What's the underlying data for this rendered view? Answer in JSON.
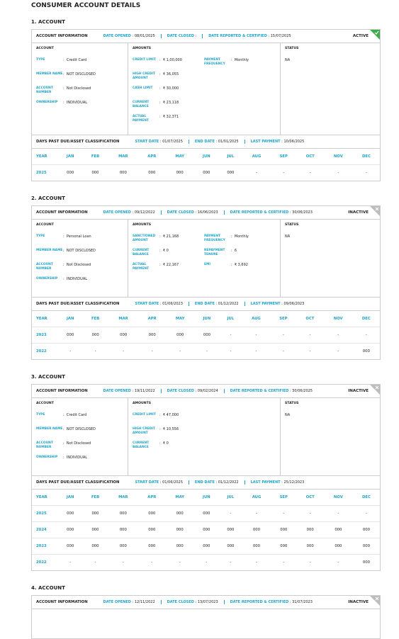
{
  "title": "CONSUMER ACCOUNT DETAILS",
  "labels": {
    "account_information": "ACCOUNT INFORMATION",
    "date_opened": "DATE OPENED",
    "date_closed": "DATE CLOSED",
    "date_reported": "DATE REPORTED & CERTIFIED",
    "account": "ACCOUNT",
    "amounts": "AMOUNTS",
    "status": "STATUS",
    "dpd": "DAYS PAST DUE/ASSET CLASSIFICATION",
    "start_date": "START DATE",
    "end_date": "END DATE",
    "last_payment": "LAST PAYMENT",
    "year": "YEAR",
    "months": [
      "JAN",
      "FEB",
      "MAR",
      "APR",
      "MAY",
      "JUN",
      "JUL",
      "AUG",
      "SEP",
      "OCT",
      "NOV",
      "DEC"
    ]
  },
  "accounts": [
    {
      "heading": "1. ACCOUNT",
      "date_opened": "08/01/2025",
      "date_reported": "15/07/2025",
      "badge": "ACTIVE",
      "account_fields": [
        {
          "label": "TYPE",
          "value": "Credit Card"
        },
        {
          "label": "MEMBER NAME",
          "value": "NOT DISCLOSED"
        },
        {
          "label": "ACCOUNT NUMBER",
          "value": "Not Disclosed"
        },
        {
          "label": "OWNERSHIP",
          "value": "INDIVIDUAL"
        }
      ],
      "amount_fields": [
        {
          "label": "CREDIT LIMIT",
          "value": "₹ 1,00,000"
        },
        {
          "label": "HIGH CREDIT AMOUNT",
          "value": "₹ 36,055"
        },
        {
          "label": "CASH LIMIT",
          "value": "₹ 30,000"
        },
        {
          "label": "CURRENT BALANCE",
          "value": "₹ 23,118"
        },
        {
          "label": "ACTUAL PAYMENT",
          "value": "₹ 32,371"
        }
      ],
      "amount_fields_right": [
        {
          "label": "PAYMENT FREQUENCY",
          "value": "Monthly"
        }
      ],
      "status": "NA",
      "dpd": {
        "start_date": "01/07/2025",
        "end_date": "01/01/2025",
        "last_payment": "10/06/2025",
        "rows": [
          {
            "year": "2025",
            "values": [
              "000",
              "000",
              "000",
              "000",
              "000",
              "000",
              "000",
              "-",
              "-",
              "-",
              "-",
              "-"
            ]
          }
        ]
      }
    },
    {
      "heading": "2. ACCOUNT",
      "date_opened": "09/12/2022",
      "date_closed": "16/06/2023",
      "date_reported": "30/06/2023",
      "badge": "INACTIVE",
      "account_fields": [
        {
          "label": "TYPE",
          "value": "Personal Loan"
        },
        {
          "label": "MEMBER NAME",
          "value": "NOT DISCLOSED"
        },
        {
          "label": "ACCOUNT NUMBER",
          "value": "Not Disclosed"
        },
        {
          "label": "OWNERSHIP",
          "value": "INDIVIDUAL"
        }
      ],
      "amount_fields": [
        {
          "label": "SANCTIONED AMOUNT",
          "value": "₹ 21,168"
        },
        {
          "label": "CURRENT BALANCE",
          "value": "₹ 0"
        },
        {
          "label": "ACTUAL PAYMENT",
          "value": "₹ 22,167"
        }
      ],
      "amount_fields_right": [
        {
          "label": "PAYMENT FREQUENCY",
          "value": "Monthly"
        },
        {
          "label": "REPAYMENT TENURE",
          "value": "6"
        },
        {
          "label": "EMI",
          "value": "₹ 3,692"
        }
      ],
      "status": "NA",
      "dpd": {
        "start_date": "01/06/2023",
        "end_date": "01/12/2022",
        "last_payment": "09/06/2023",
        "rows": [
          {
            "year": "2023",
            "values": [
              "000",
              "000",
              "000",
              "000",
              "000",
              "000",
              "-",
              "-",
              "-",
              "-",
              "-",
              "-"
            ]
          },
          {
            "year": "2022",
            "values": [
              "-",
              "-",
              "-",
              "-",
              "-",
              "-",
              "-",
              "-",
              "-",
              "-",
              "-",
              "000"
            ]
          }
        ]
      }
    },
    {
      "heading": "3. ACCOUNT",
      "date_opened": "19/11/2022",
      "date_closed": "09/02/2024",
      "date_reported": "30/06/2025",
      "badge": "INACTIVE",
      "account_fields": [
        {
          "label": "TYPE",
          "value": "Credit Card"
        },
        {
          "label": "MEMBER NAME",
          "value": "NOT DISCLOSED"
        },
        {
          "label": "ACCOUNT NUMBER",
          "value": "Not Disclosed"
        },
        {
          "label": "OWNERSHIP",
          "value": "INDIVIDUAL"
        }
      ],
      "amount_fields": [
        {
          "label": "CREDIT LIMIT",
          "value": "₹ 47,000"
        },
        {
          "label": "HIGH CREDIT AMOUNT",
          "value": "₹ 10,556"
        },
        {
          "label": "CURRENT BALANCE",
          "value": "₹ 0"
        }
      ],
      "status": "NA",
      "dpd": {
        "start_date": "01/06/2025",
        "end_date": "01/12/2022",
        "last_payment": "25/12/2023",
        "rows": [
          {
            "year": "2025",
            "values": [
              "000",
              "000",
              "000",
              "000",
              "000",
              "000",
              "-",
              "-",
              "-",
              "-",
              "-",
              "-"
            ]
          },
          {
            "year": "2024",
            "values": [
              "000",
              "000",
              "000",
              "000",
              "000",
              "000",
              "000",
              "000",
              "000",
              "000",
              "000",
              "000"
            ]
          },
          {
            "year": "2023",
            "values": [
              "000",
              "000",
              "000",
              "000",
              "000",
              "000",
              "000",
              "000",
              "000",
              "000",
              "000",
              "000"
            ]
          },
          {
            "year": "2022",
            "values": [
              "-",
              "-",
              "-",
              "-",
              "-",
              "-",
              "-",
              "-",
              "-",
              "-",
              "-",
              "000"
            ]
          }
        ]
      }
    },
    {
      "heading": "4. ACCOUNT",
      "date_opened": "12/11/2022",
      "date_closed": "13/07/2023",
      "date_reported": "31/07/2023",
      "badge": "INACTIVE"
    }
  ]
}
